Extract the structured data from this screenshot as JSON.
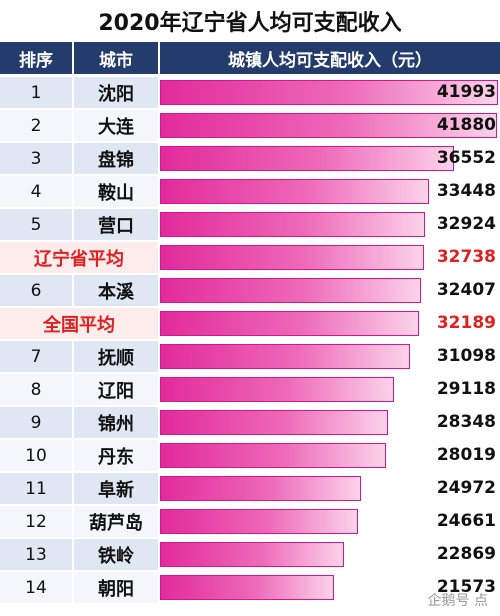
{
  "header": {
    "title": "2020年辽宁省人均可支配收入",
    "col_rank": "排序",
    "col_city": "城市",
    "col_income": "城镇人均可支配收入（元）"
  },
  "watermark": "企鹅号 点",
  "colors": {
    "header_bg": "#243c6c",
    "bar": "#e22a9b",
    "avg_text": "#e02020"
  },
  "chart_data": {
    "type": "bar",
    "title": "2020年辽宁省人均可支配收入",
    "xlabel": "城市",
    "ylabel": "城镇人均可支配收入（元）",
    "rows": [
      {
        "rank": "1",
        "city": "沈阳",
        "value": 41993
      },
      {
        "rank": "2",
        "city": "大连",
        "value": 41880
      },
      {
        "rank": "3",
        "city": "盘锦",
        "value": 36552
      },
      {
        "rank": "4",
        "city": "鞍山",
        "value": 33448
      },
      {
        "rank": "5",
        "city": "营口",
        "value": 32924
      },
      {
        "rank": "",
        "city": "辽宁省平均",
        "value": 32738,
        "highlight": true
      },
      {
        "rank": "6",
        "city": "本溪",
        "value": 32407
      },
      {
        "rank": "",
        "city": "全国平均",
        "value": 32189,
        "highlight": true
      },
      {
        "rank": "7",
        "city": "抚顺",
        "value": 31098
      },
      {
        "rank": "8",
        "city": "辽阳",
        "value": 29118
      },
      {
        "rank": "9",
        "city": "锦州",
        "value": 28348
      },
      {
        "rank": "10",
        "city": "丹东",
        "value": 28019
      },
      {
        "rank": "11",
        "city": "阜新",
        "value": 24972
      },
      {
        "rank": "12",
        "city": "葫芦岛",
        "value": 24661
      },
      {
        "rank": "13",
        "city": "铁岭",
        "value": 22869
      },
      {
        "rank": "14",
        "city": "朝阳",
        "value": 21573
      }
    ],
    "xlim": [
      0,
      41993
    ]
  }
}
